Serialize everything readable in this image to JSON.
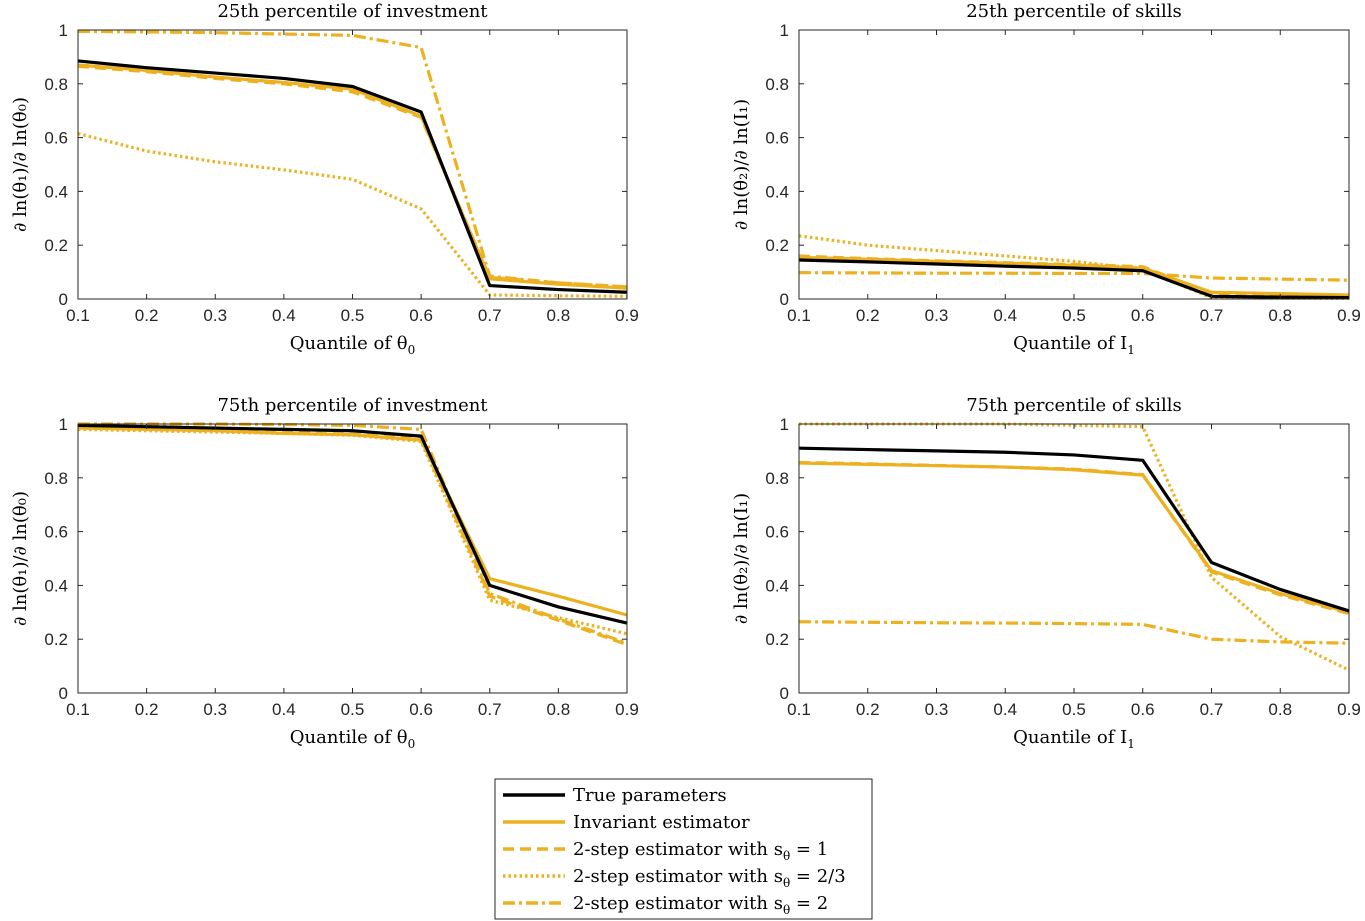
{
  "colors": {
    "black": "#000000",
    "gold": "#EDB120",
    "axis": "#262626",
    "grid": "#222222"
  },
  "legend": {
    "entries": [
      {
        "label": "True parameters",
        "style": "solid-black"
      },
      {
        "label": "Invariant estimator",
        "style": "solid-gold"
      },
      {
        "label": "2-step estimator with s",
        "sub": "θ",
        "suffix": " = 1",
        "style": "dashed-gold"
      },
      {
        "label": "2-step estimator with s",
        "sub": "θ",
        "suffix": " = 2/3",
        "style": "dotted-gold"
      },
      {
        "label": "2-step estimator with s",
        "sub": "θ",
        "suffix": " = 2",
        "style": "dashdot-gold"
      }
    ]
  },
  "chart_data": [
    {
      "type": "line",
      "title": "25th percentile of investment",
      "xlabel": "Quantile of θ",
      "xlabel_sub": "0",
      "ylabel": "∂ ln(θ₁)/∂ ln(θ₀)",
      "x": [
        0.1,
        0.2,
        0.3,
        0.4,
        0.5,
        0.6,
        0.7,
        0.8,
        0.9
      ],
      "xlim": [
        0.1,
        0.9
      ],
      "ylim": [
        0,
        1
      ],
      "xticks": [
        "0.1",
        "0.2",
        "0.3",
        "0.4",
        "0.5",
        "0.6",
        "0.7",
        "0.8",
        "0.9"
      ],
      "yticks": [
        "0",
        "0.2",
        "0.4",
        "0.6",
        "0.8",
        "1"
      ],
      "series": [
        {
          "name": "True parameters",
          "values": [
            0.885,
            0.86,
            0.84,
            0.82,
            0.79,
            0.695,
            0.05,
            0.035,
            0.025
          ]
        },
        {
          "name": "Invariant estimator",
          "values": [
            0.87,
            0.85,
            0.825,
            0.805,
            0.78,
            0.68,
            0.075,
            0.055,
            0.04
          ]
        },
        {
          "name": "2-step estimator with s_θ = 1",
          "values": [
            0.865,
            0.845,
            0.82,
            0.8,
            0.77,
            0.675,
            0.08,
            0.06,
            0.045
          ]
        },
        {
          "name": "2-step estimator with s_θ = 2/3",
          "values": [
            0.615,
            0.55,
            0.51,
            0.48,
            0.445,
            0.335,
            0.015,
            0.012,
            0.01
          ]
        },
        {
          "name": "2-step estimator with s_θ = 2",
          "values": [
            0.995,
            0.993,
            0.99,
            0.985,
            0.98,
            0.935,
            0.085,
            0.06,
            0.045
          ]
        }
      ]
    },
    {
      "type": "line",
      "title": "25th percentile of skills",
      "xlabel": "Quantile of I",
      "xlabel_sub": "1",
      "ylabel": "∂ ln(θ₂)/∂ ln(I₁)",
      "x": [
        0.1,
        0.2,
        0.3,
        0.4,
        0.5,
        0.6,
        0.7,
        0.8,
        0.9
      ],
      "xlim": [
        0.1,
        0.9
      ],
      "ylim": [
        0,
        1
      ],
      "xticks": [
        "0.1",
        "0.2",
        "0.3",
        "0.4",
        "0.5",
        "0.6",
        "0.7",
        "0.8",
        "0.9"
      ],
      "yticks": [
        "0",
        "0.2",
        "0.4",
        "0.6",
        "0.8",
        "1"
      ],
      "series": [
        {
          "name": "True parameters",
          "values": [
            0.145,
            0.138,
            0.13,
            0.122,
            0.115,
            0.105,
            0.01,
            0.007,
            0.005
          ]
        },
        {
          "name": "Invariant estimator",
          "values": [
            0.155,
            0.148,
            0.14,
            0.133,
            0.125,
            0.115,
            0.025,
            0.02,
            0.015
          ]
        },
        {
          "name": "2-step estimator with s_θ = 1",
          "values": [
            0.16,
            0.15,
            0.142,
            0.135,
            0.128,
            0.12,
            0.02,
            0.015,
            0.012
          ]
        },
        {
          "name": "2-step estimator with s_θ = 2/3",
          "values": [
            0.235,
            0.2,
            0.18,
            0.16,
            0.14,
            0.11,
            0.005,
            0.003,
            0.002
          ]
        },
        {
          "name": "2-step estimator with s_θ = 2",
          "values": [
            0.098,
            0.097,
            0.096,
            0.096,
            0.095,
            0.095,
            0.078,
            0.074,
            0.07
          ]
        }
      ]
    },
    {
      "type": "line",
      "title": "75th percentile of investment",
      "xlabel": "Quantile of θ",
      "xlabel_sub": "0",
      "ylabel": "∂ ln(θ₁)/∂ ln(θ₀)",
      "x": [
        0.1,
        0.2,
        0.3,
        0.4,
        0.5,
        0.6,
        0.7,
        0.8,
        0.9
      ],
      "xlim": [
        0.1,
        0.9
      ],
      "ylim": [
        0,
        1
      ],
      "xticks": [
        "0.1",
        "0.2",
        "0.3",
        "0.4",
        "0.5",
        "0.6",
        "0.7",
        "0.8",
        "0.9"
      ],
      "yticks": [
        "0",
        "0.2",
        "0.4",
        "0.6",
        "0.8",
        "1"
      ],
      "series": [
        {
          "name": "True parameters",
          "values": [
            0.995,
            0.99,
            0.985,
            0.98,
            0.975,
            0.955,
            0.4,
            0.32,
            0.26
          ]
        },
        {
          "name": "Invariant estimator",
          "values": [
            0.985,
            0.98,
            0.975,
            0.965,
            0.96,
            0.94,
            0.425,
            0.36,
            0.29
          ]
        },
        {
          "name": "2-step estimator with s_θ = 1",
          "values": [
            0.99,
            0.985,
            0.978,
            0.97,
            0.962,
            0.945,
            0.36,
            0.27,
            0.18
          ]
        },
        {
          "name": "2-step estimator with s_θ = 2/3",
          "values": [
            0.98,
            0.975,
            0.97,
            0.965,
            0.958,
            0.935,
            0.345,
            0.28,
            0.22
          ]
        },
        {
          "name": "2-step estimator with s_θ = 2",
          "values": [
            1.0,
            1.0,
            1.0,
            0.998,
            0.995,
            0.98,
            0.37,
            0.275,
            0.185
          ]
        }
      ]
    },
    {
      "type": "line",
      "title": "75th percentile of skills",
      "xlabel": "Quantile of I",
      "xlabel_sub": "1",
      "ylabel": "∂ ln(θ₂)/∂ ln(I₁)",
      "x": [
        0.1,
        0.2,
        0.3,
        0.4,
        0.5,
        0.6,
        0.7,
        0.8,
        0.9
      ],
      "xlim": [
        0.1,
        0.9
      ],
      "ylim": [
        0,
        1
      ],
      "xticks": [
        "0.1",
        "0.2",
        "0.3",
        "0.4",
        "0.5",
        "0.6",
        "0.7",
        "0.8",
        "0.9"
      ],
      "yticks": [
        "0",
        "0.2",
        "0.4",
        "0.6",
        "0.8",
        "1"
      ],
      "series": [
        {
          "name": "True parameters",
          "values": [
            0.91,
            0.905,
            0.9,
            0.895,
            0.885,
            0.865,
            0.485,
            0.385,
            0.305
          ]
        },
        {
          "name": "Invariant estimator",
          "values": [
            0.855,
            0.85,
            0.845,
            0.84,
            0.83,
            0.81,
            0.455,
            0.37,
            0.3
          ]
        },
        {
          "name": "2-step estimator with s_θ = 1",
          "values": [
            0.857,
            0.852,
            0.846,
            0.84,
            0.832,
            0.812,
            0.45,
            0.365,
            0.295
          ]
        },
        {
          "name": "2-step estimator with s_θ = 2/3",
          "values": [
            1.0,
            1.0,
            1.0,
            1.0,
            0.995,
            0.99,
            0.43,
            0.21,
            0.085
          ]
        },
        {
          "name": "2-step estimator with s_θ = 2",
          "values": [
            0.265,
            0.263,
            0.261,
            0.26,
            0.258,
            0.255,
            0.2,
            0.19,
            0.185
          ]
        }
      ]
    }
  ]
}
